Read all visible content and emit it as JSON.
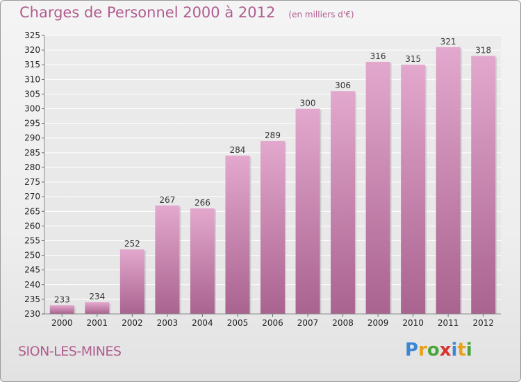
{
  "chart_data": {
    "type": "bar",
    "title": "Charges de Personnel 2000 à 2012",
    "unit_label": "(en milliers d'€)",
    "categories": [
      "2000",
      "2001",
      "2002",
      "2003",
      "2004",
      "2005",
      "2006",
      "2007",
      "2008",
      "2009",
      "2010",
      "2011",
      "2012"
    ],
    "values": [
      233,
      234,
      252,
      267,
      266,
      284,
      289,
      300,
      306,
      316,
      315,
      321,
      318
    ],
    "ylim": [
      230,
      325
    ],
    "ytick_step": 5,
    "xlabel": "",
    "ylabel": "",
    "grid": true,
    "bar_color": "#c27aa6"
  },
  "footer": {
    "commune": "SION-LES-MINES",
    "logo_letters": [
      "P",
      "r",
      "o",
      "x",
      "i",
      "t",
      "i"
    ],
    "logo_colors": [
      "#3a86d4",
      "#e8a11b",
      "#4aa53a",
      "#d8322e",
      "#3a86d4",
      "#e8a11b",
      "#4aa53a"
    ]
  }
}
